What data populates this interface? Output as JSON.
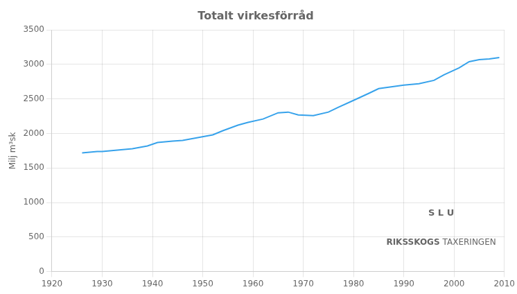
{
  "chart_data": {
    "type": "line",
    "title": "Totalt virkesförråd",
    "ylabel": "Milj m³sk",
    "x": [
      1926,
      1929,
      1930,
      1933,
      1936,
      1939,
      1941,
      1944,
      1946,
      1949,
      1952,
      1954,
      1957,
      1959,
      1962,
      1965,
      1967,
      1969,
      1972,
      1975,
      1977,
      1980,
      1983,
      1985,
      1988,
      1990,
      1993,
      1996,
      1998,
      2001,
      2003,
      2005,
      2007,
      2009
    ],
    "values": [
      1720,
      1740,
      1740,
      1760,
      1780,
      1820,
      1870,
      1890,
      1900,
      1940,
      1980,
      2040,
      2120,
      2160,
      2210,
      2300,
      2310,
      2270,
      2260,
      2310,
      2380,
      2480,
      2580,
      2650,
      2680,
      2700,
      2720,
      2770,
      2850,
      2950,
      3040,
      3070,
      3080,
      3100
    ],
    "xlim": [
      1920,
      2010
    ],
    "xticks": [
      1920,
      1930,
      1940,
      1950,
      1960,
      1970,
      1980,
      1990,
      2000,
      2010
    ],
    "ylim": [
      0,
      3500
    ],
    "yticks": [
      0,
      500,
      1000,
      1500,
      2000,
      2500,
      3000,
      3500
    ],
    "grid": true,
    "annotations": [
      "S L U",
      "RIKSSKOGS",
      "TAXERINGEN"
    ]
  }
}
